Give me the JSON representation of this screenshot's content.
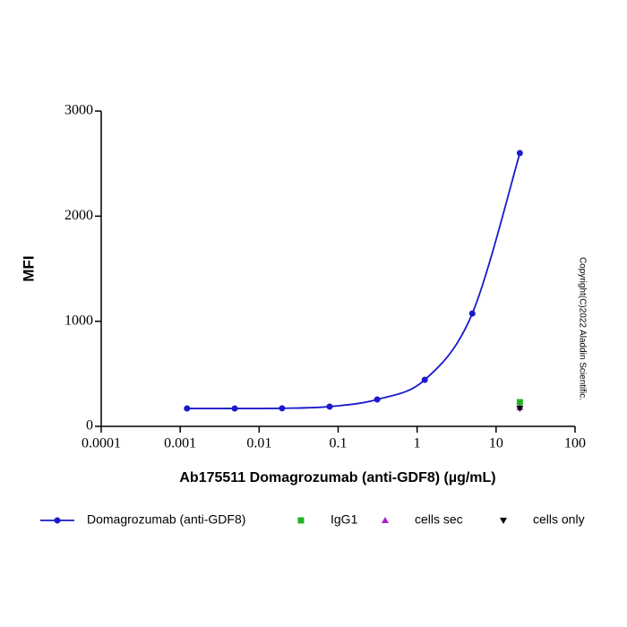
{
  "chart_data": {
    "type": "line",
    "x_label": "Ab175511 Domagrozumab (anti-GDF8) (µg/mL)",
    "y_label": "MFI",
    "annotation": "Copyright(C)2022 Aladdin Scientific.",
    "x_log": true,
    "xlim": [
      0.0001,
      100
    ],
    "xticks": [
      0.0001,
      0.001,
      0.01,
      0.1,
      1,
      10,
      100
    ],
    "ylim": [
      0,
      3000
    ],
    "yticks": [
      0,
      1000,
      2000,
      3000
    ],
    "series": [
      {
        "name": "Domagrozumab (anti-GDF8)",
        "color": "#1a1acc",
        "marker": "circle",
        "line": true,
        "x": [
          0.00122,
          0.0049,
          0.0195,
          0.078,
          0.3125,
          1.25,
          5,
          20
        ],
        "values": [
          170,
          170,
          172,
          188,
          256,
          443,
          1074,
          2600
        ]
      },
      {
        "name": "IgG1",
        "color": "#22b422",
        "marker": "square",
        "line": false,
        "x": [
          20
        ],
        "values": [
          230
        ]
      },
      {
        "name": "cells sec",
        "color": "#a020c8",
        "marker": "triangle",
        "line": false,
        "x": [
          20
        ],
        "values": [
          180
        ]
      },
      {
        "name": "cells only",
        "color": "#000000",
        "marker": "triangle-down",
        "line": false,
        "x": [
          20
        ],
        "values": [
          170
        ]
      }
    ]
  }
}
